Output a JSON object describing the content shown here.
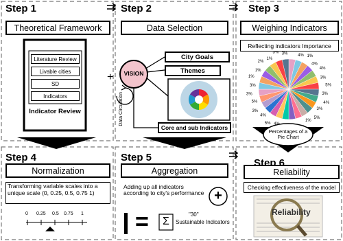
{
  "step1": {
    "step": "Step 1",
    "title": "Theoretical Framework",
    "items": [
      "Literature Review",
      "Livable cities",
      "SD",
      "Indicators"
    ],
    "caption": "Indicator Review"
  },
  "step2": {
    "step": "Step 2",
    "title": "Data Selection",
    "vision": "VISION",
    "boxes": [
      "City Goals",
      "Themes",
      "Core and sub Indicators"
    ],
    "side_label": "Data Circulation",
    "plus": "+"
  },
  "step3": {
    "step": "Step 3",
    "title": "Weighing Indicators",
    "subtitle": "Reflecting indicators Importance",
    "pie_labels": [
      "2%",
      "4%",
      "1%",
      "4%",
      "4%",
      "3%",
      "5%",
      "3%",
      "4%",
      "3%",
      "5%",
      "1%",
      "4%",
      "6%",
      "4%",
      "4%",
      "5%",
      "4%",
      "3%",
      "5%",
      "3%",
      "3%",
      "1%",
      "1%",
      "2%",
      "1%",
      "5%",
      "3%"
    ],
    "note": "Percentages of a Pie Chart"
  },
  "step4": {
    "step": "Step 4",
    "title": "Normalization",
    "text": "Transforming variable scales into a unique scale (0, 0.25, 0.5, 0.75 1)",
    "scale": [
      "0",
      "0.25",
      "0.5",
      "0.75",
      "1"
    ]
  },
  "step5": {
    "step": "Step 5",
    "title": "Aggregation",
    "text": "Adding up all indicators according to city's performance",
    "plus": "+",
    "equals": "=",
    "sigma": "Σ",
    "count": "\"30\"",
    "count_label": "Sustainable Indicators"
  },
  "step6": {
    "step": "Step 6",
    "title": "Reliability",
    "text": "Checking effectiveness of the model",
    "image_text": "Reliability"
  }
}
